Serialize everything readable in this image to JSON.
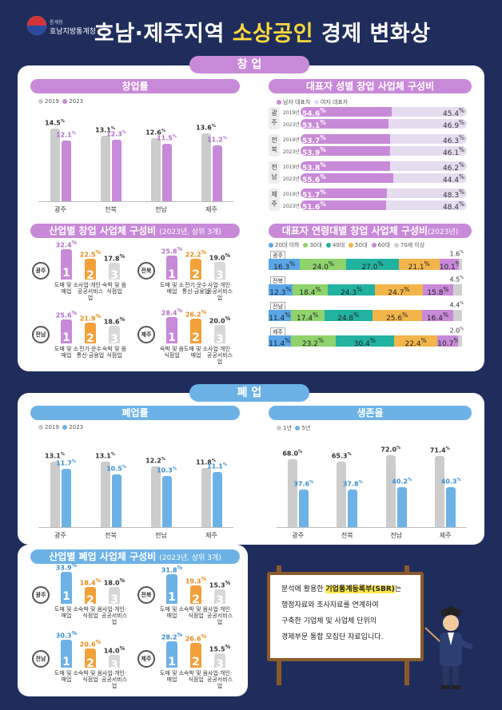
{
  "header": {
    "org_small": "통계청",
    "org": "호남지방통계청",
    "title_a": "호남·제주지역 ",
    "title_hl": "소상공인",
    "title_b": " 경제 변화상"
  },
  "sections": {
    "startup": "창 업",
    "closure": "폐 업"
  },
  "colors": {
    "y2019": "#cccccc",
    "y2023_purple": "#c88ad8",
    "y2023_blue": "#6cb2e6",
    "male": "#c88ad8",
    "female": "#e5dcf0"
  },
  "startup_rate": {
    "title": "창업률",
    "legend": [
      "2019",
      "2023"
    ],
    "regions": [
      "광주",
      "전북",
      "전남",
      "제주"
    ],
    "v2019": [
      14.5,
      13.1,
      12.6,
      13.6
    ],
    "v2023": [
      12.1,
      12.3,
      11.5,
      11.2
    ],
    "ymax": 16
  },
  "gender": {
    "title": "대표자 성별 창업 사업체 구성비",
    "legend": [
      "남자 대표자",
      "여자 대표자"
    ],
    "groups": [
      {
        "region": "광주",
        "rows": [
          {
            "year": "2019년",
            "m": "54.6",
            "f": "45.4"
          },
          {
            "year": "2023년",
            "m": "53.1",
            "f": "46.9"
          }
        ]
      },
      {
        "region": "전북",
        "rows": [
          {
            "year": "2019년",
            "m": "53.7",
            "f": "46.3"
          },
          {
            "year": "2023년",
            "m": "53.9",
            "f": "46.1"
          }
        ]
      },
      {
        "region": "전남",
        "rows": [
          {
            "year": "2019년",
            "m": "53.8",
            "f": "46.2"
          },
          {
            "year": "2023년",
            "m": "55.6",
            "f": "44.4"
          }
        ]
      },
      {
        "region": "제주",
        "rows": [
          {
            "year": "2019년",
            "m": "51.7",
            "f": "48.3"
          },
          {
            "year": "2023년",
            "m": "51.6",
            "f": "48.4"
          }
        ]
      }
    ]
  },
  "industry_startup": {
    "title": "산업별 창업 사업체 구성비",
    "sub": "(2023년, 상위 3개)",
    "panels": [
      {
        "region": "광주",
        "vals": [
          "32.4",
          "22.5",
          "17.8"
        ],
        "cats": [
          "도매 및 소매업",
          "사업·개인· 공공서비스업",
          "숙박 및 음식점업"
        ]
      },
      {
        "region": "전북",
        "vals": [
          "25.8",
          "22.2",
          "19.0"
        ],
        "cats": [
          "도매 및 소매업",
          "전기·운수 통신·금융업",
          "사업·개인· 공공서비스업"
        ]
      },
      {
        "region": "전남",
        "vals": [
          "25.6",
          "21.9",
          "18.6"
        ],
        "cats": [
          "도매 및 소매업",
          "전기·운수 통신·금융업",
          "숙박 및 음식점업"
        ]
      },
      {
        "region": "제주",
        "vals": [
          "28.4",
          "26.2",
          "20.0"
        ],
        "cats": [
          "숙박 및 음식점업",
          "도매 및 소매업",
          "사업·개인· 공공서비스업"
        ]
      }
    ]
  },
  "age": {
    "title": "대표자 연령대별 창업 사업체 구성비",
    "sub": "(2023년)",
    "legend": [
      "20대 이하",
      "30대",
      "40대",
      "50대",
      "60대",
      "70세 이상"
    ],
    "colors": [
      "#5aa6e8",
      "#8ed36b",
      "#22b2a0",
      "#f2b54a",
      "#c88ad8",
      "#d0d0d0"
    ],
    "rows": [
      {
        "region": "광주",
        "vals": [
          16.3,
          24.0,
          27.0,
          21.1,
          10.1,
          1.6
        ]
      },
      {
        "region": "전북",
        "vals": [
          12.3,
          18.4,
          24.3,
          24.7,
          15.8,
          4.5
        ]
      },
      {
        "region": "전남",
        "vals": [
          11.4,
          17.4,
          24.8,
          25.6,
          16.4,
          4.4
        ]
      },
      {
        "region": "제주",
        "vals": [
          11.4,
          23.2,
          30.4,
          22.4,
          10.7,
          2.0
        ]
      }
    ]
  },
  "closure_rate": {
    "title": "폐업률",
    "legend": [
      "2019",
      "2023"
    ],
    "regions": [
      "광주",
      "전북",
      "전남",
      "제주"
    ],
    "v2019": [
      13.1,
      13.1,
      12.2,
      11.8
    ],
    "v2023": [
      11.7,
      10.5,
      10.3,
      11.1
    ],
    "ymax": 16
  },
  "survival": {
    "title": "생존율",
    "legend": [
      "1년",
      "5년"
    ],
    "regions": [
      "광주",
      "전북",
      "전남",
      "제주"
    ],
    "v1": [
      68.0,
      65.3,
      72.0,
      71.4
    ],
    "v5": [
      37.6,
      37.8,
      40.2,
      40.3
    ],
    "ymax": 80
  },
  "industry_closure": {
    "title": "산업별 폐업 사업체 구성비",
    "sub": "(2023년, 상위 3개)",
    "panels": [
      {
        "region": "광주",
        "vals": [
          "33.9",
          "18.4",
          "18.0"
        ],
        "cats": [
          "도매 및 소매업",
          "숙박 및 음식점업",
          "사업·개인· 공공서비스업"
        ]
      },
      {
        "region": "전북",
        "vals": [
          "31.8",
          "19.3",
          "15.3"
        ],
        "cats": [
          "도매 및 소매업",
          "숙박 및 음식점업",
          "사업·개인· 공공서비스업"
        ]
      },
      {
        "region": "전남",
        "vals": [
          "30.3",
          "20.6",
          "14.0"
        ],
        "cats": [
          "도매 및 소매업",
          "숙박 및 음식점업",
          "사업·개인· 공공서비스업"
        ]
      },
      {
        "region": "제주",
        "vals": [
          "28.2",
          "26.6",
          "15.5"
        ],
        "cats": [
          "도매 및 소매업",
          "숙박 및 음식점업",
          "사업·개인· 공공서비스업"
        ]
      }
    ]
  },
  "note": {
    "l1a": "분석에 활용한 ",
    "l1h": "기업통계등록부(SBR)",
    "l1b": "는",
    "l2": "행정자료와 조사자료를 연계하여",
    "l3": "구축한 기업체 및 사업체 단위의",
    "l4": "경제부문 통합 모집단 자료입니다."
  },
  "chart_data": [
    {
      "type": "bar",
      "title": "창업률",
      "categories": [
        "광주",
        "전북",
        "전남",
        "제주"
      ],
      "series": [
        {
          "name": "2019",
          "values": [
            14.5,
            13.1,
            12.6,
            13.6
          ]
        },
        {
          "name": "2023",
          "values": [
            12.1,
            12.3,
            11.5,
            11.2
          ]
        }
      ]
    },
    {
      "type": "bar",
      "title": "대표자 성별 창업 사업체 구성비",
      "categories": [
        "광주 2019년",
        "광주 2023년",
        "전북 2019년",
        "전북 2023년",
        "전남 2019년",
        "전남 2023년",
        "제주 2019년",
        "제주 2023년"
      ],
      "series": [
        {
          "name": "남자 대표자",
          "values": [
            54.6,
            53.1,
            53.7,
            53.9,
            53.8,
            55.6,
            51.7,
            51.6
          ]
        },
        {
          "name": "여자 대표자",
          "values": [
            45.4,
            46.9,
            46.3,
            46.1,
            46.2,
            44.4,
            48.3,
            48.4
          ]
        }
      ]
    },
    {
      "type": "bar",
      "title": "대표자 연령대별 창업 사업체 구성비",
      "categories": [
        "광주",
        "전북",
        "전남",
        "제주"
      ],
      "series": [
        {
          "name": "20대 이하",
          "values": [
            16.3,
            12.3,
            11.4,
            11.4
          ]
        },
        {
          "name": "30대",
          "values": [
            24.0,
            18.4,
            17.4,
            23.2
          ]
        },
        {
          "name": "40대",
          "values": [
            27.0,
            24.3,
            24.8,
            30.4
          ]
        },
        {
          "name": "50대",
          "values": [
            21.1,
            24.7,
            25.6,
            22.4
          ]
        },
        {
          "name": "60대",
          "values": [
            10.1,
            15.8,
            16.4,
            10.7
          ]
        },
        {
          "name": "70세 이상",
          "values": [
            1.6,
            4.5,
            4.4,
            2.0
          ]
        }
      ]
    },
    {
      "type": "bar",
      "title": "폐업률",
      "categories": [
        "광주",
        "전북",
        "전남",
        "제주"
      ],
      "series": [
        {
          "name": "2019",
          "values": [
            13.1,
            13.1,
            12.2,
            11.8
          ]
        },
        {
          "name": "2023",
          "values": [
            11.7,
            10.5,
            10.3,
            11.1
          ]
        }
      ]
    },
    {
      "type": "bar",
      "title": "생존율",
      "categories": [
        "광주",
        "전북",
        "전남",
        "제주"
      ],
      "series": [
        {
          "name": "1년",
          "values": [
            68.0,
            65.3,
            72.0,
            71.4
          ]
        },
        {
          "name": "5년",
          "values": [
            37.6,
            37.8,
            40.2,
            40.3
          ]
        }
      ]
    }
  ]
}
